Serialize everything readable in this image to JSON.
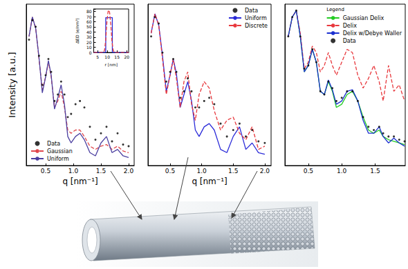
{
  "chart_data": [
    {
      "type": "line",
      "x_label": "q [nm⁻¹]",
      "y_label": "Intensity [a.u.]",
      "xlim": [
        0.15,
        2.1
      ],
      "xticks": [
        0.5,
        {
          "value": 1,
          "label": "1.0"
        },
        1.5,
        {
          "value": 2,
          "label": "2.0"
        }
      ],
      "ylim": [
        0,
        100
      ],
      "tick_labels": "x",
      "grid": false,
      "legend": "lower left",
      "x": [
        0.2,
        0.26,
        0.32,
        0.38,
        0.44,
        0.5,
        0.55,
        0.6,
        0.66,
        0.72,
        0.78,
        0.84,
        0.9,
        0.96,
        1.04,
        1.12,
        1.2,
        1.3,
        1.4,
        1.5,
        1.6,
        1.7,
        1.8,
        1.9,
        2.0
      ],
      "series": [
        {
          "name": "Data",
          "type": "scatter",
          "marker": "circle",
          "color": "#000000",
          "values": [
            78,
            90,
            86,
            68,
            50,
            56,
            66,
            58,
            40,
            44,
            52,
            44,
            30,
            32,
            38,
            40,
            36,
            24,
            16,
            20,
            24,
            15,
            20,
            13,
            12
          ]
        },
        {
          "name": "Gaussian",
          "type": "line",
          "line_style": "dashed",
          "color": "#e0474c",
          "values": [
            80,
            92,
            85,
            66,
            47,
            55,
            64,
            55,
            36,
            40,
            46,
            36,
            22,
            20,
            22,
            22,
            18,
            12,
            10,
            12,
            13,
            10,
            12,
            9,
            8
          ]
        },
        {
          "name": "Uniform",
          "type": "line",
          "line_style": "solid",
          "color": "#4b3fa0",
          "values": [
            80,
            92,
            85,
            67,
            45,
            55,
            65,
            56,
            35,
            42,
            50,
            38,
            18,
            14,
            18,
            20,
            16,
            8,
            6,
            14,
            18,
            8,
            10,
            6,
            5
          ]
        }
      ]
    },
    {
      "type": "line",
      "x_label": "q [nm⁻¹]",
      "xlim": [
        0.15,
        2.1
      ],
      "xticks": [
        0.5,
        {
          "value": 1,
          "label": "1.0"
        },
        1.5,
        {
          "value": 2,
          "label": "2.0"
        }
      ],
      "ylim": [
        0,
        100
      ],
      "tick_labels": "x",
      "grid": false,
      "legend": "upper right",
      "x": [
        0.2,
        0.26,
        0.32,
        0.38,
        0.44,
        0.5,
        0.55,
        0.6,
        0.66,
        0.72,
        0.78,
        0.84,
        0.9,
        0.96,
        1.04,
        1.12,
        1.2,
        1.3,
        1.4,
        1.5,
        1.6,
        1.7,
        1.8,
        1.9,
        2.0
      ],
      "series": [
        {
          "name": "Data",
          "type": "scatter",
          "marker": "circle",
          "color": "#000000",
          "values": [
            80,
            92,
            88,
            70,
            52,
            58,
            66,
            58,
            42,
            46,
            54,
            46,
            36,
            36,
            40,
            42,
            38,
            26,
            18,
            22,
            26,
            18,
            22,
            15,
            14
          ]
        },
        {
          "name": "Uniform",
          "type": "line",
          "line_style": "solid",
          "color": "#2a2ad8",
          "values": [
            82,
            94,
            87,
            68,
            46,
            56,
            66,
            57,
            36,
            44,
            52,
            40,
            22,
            18,
            24,
            26,
            22,
            10,
            8,
            18,
            24,
            10,
            14,
            8,
            7
          ]
        },
        {
          "name": "Discrete",
          "type": "line",
          "line_style": "dashed",
          "color": "#e8383d",
          "values": [
            82,
            94,
            87,
            66,
            44,
            56,
            66,
            54,
            36,
            52,
            58,
            38,
            28,
            44,
            52,
            48,
            34,
            22,
            28,
            30,
            20,
            16,
            24,
            10,
            12
          ]
        }
      ]
    },
    {
      "type": "line",
      "legend_title": "Legend",
      "xlim": [
        0.15,
        1.95
      ],
      "xticks": [
        0.5,
        {
          "value": 1,
          "label": "1.0"
        },
        1.5
      ],
      "ylim": [
        0,
        100
      ],
      "tick_labels": "x",
      "grid": false,
      "legend": "upper right",
      "x": [
        0.2,
        0.26,
        0.32,
        0.38,
        0.44,
        0.5,
        0.56,
        0.62,
        0.68,
        0.74,
        0.8,
        0.86,
        0.92,
        1.0,
        1.08,
        1.16,
        1.24,
        1.32,
        1.4,
        1.48,
        1.56,
        1.62,
        1.7,
        1.78,
        1.86,
        1.94
      ],
      "series": [
        {
          "name": "Gaussian Delix",
          "type": "line",
          "line_style": "solid",
          "color": "#22cc22",
          "values": [
            80,
            92,
            96,
            80,
            58,
            62,
            72,
            64,
            46,
            44,
            52,
            46,
            36,
            38,
            44,
            46,
            40,
            30,
            22,
            20,
            22,
            18,
            16,
            15,
            14,
            13
          ]
        },
        {
          "name": "Delix",
          "type": "line",
          "line_style": "dashed",
          "color": "#e8383d",
          "values": [
            80,
            92,
            96,
            82,
            60,
            64,
            74,
            70,
            58,
            62,
            70,
            62,
            56,
            64,
            72,
            70,
            56,
            48,
            54,
            62,
            52,
            40,
            62,
            46,
            50,
            40
          ]
        },
        {
          "name": "Delix w/Debye Waller",
          "type": "line",
          "line_style": "solid",
          "color": "#1a2fd0",
          "values": [
            80,
            92,
            96,
            80,
            58,
            62,
            72,
            64,
            46,
            44,
            53,
            47,
            38,
            40,
            46,
            47,
            40,
            28,
            20,
            20,
            24,
            18,
            14,
            17,
            14,
            12
          ]
        },
        {
          "name": "Data",
          "type": "scatter",
          "marker": "circle",
          "color": "#000000",
          "values": [
            80,
            92,
            96,
            80,
            60,
            62,
            72,
            64,
            46,
            44,
            52,
            48,
            40,
            42,
            46,
            46,
            40,
            30,
            24,
            22,
            24,
            20,
            18,
            18,
            16,
            15
          ]
        }
      ]
    },
    {
      "type": "line",
      "x_label": "r [nm]",
      "y_label": "ΔED (e/nm³)",
      "xlim": [
        3,
        21
      ],
      "xticks": [
        5,
        10,
        15,
        20
      ],
      "ylim": [
        0,
        85
      ],
      "yticks": [
        0,
        10,
        20,
        30,
        40,
        50,
        60,
        70,
        80
      ],
      "grid": false,
      "series": [
        {
          "name": "Uniform",
          "type": "line",
          "line_style": "solid",
          "color": "#2a2ad8",
          "x": [
            3,
            9.2,
            9.2,
            12.6,
            12.6,
            21
          ],
          "values": [
            0,
            0,
            68,
            68,
            0,
            0
          ]
        },
        {
          "name": "Gaussian",
          "type": "line",
          "line_style": "dashed",
          "color": "#e8383d",
          "x": [
            3,
            8,
            8.6,
            9.2,
            9.8,
            10.4,
            10.8,
            11.2,
            11.8,
            12.4,
            13,
            13.6,
            21
          ],
          "values": [
            0,
            0,
            5,
            25,
            60,
            80,
            83,
            78,
            55,
            22,
            5,
            0,
            0
          ]
        }
      ]
    }
  ]
}
